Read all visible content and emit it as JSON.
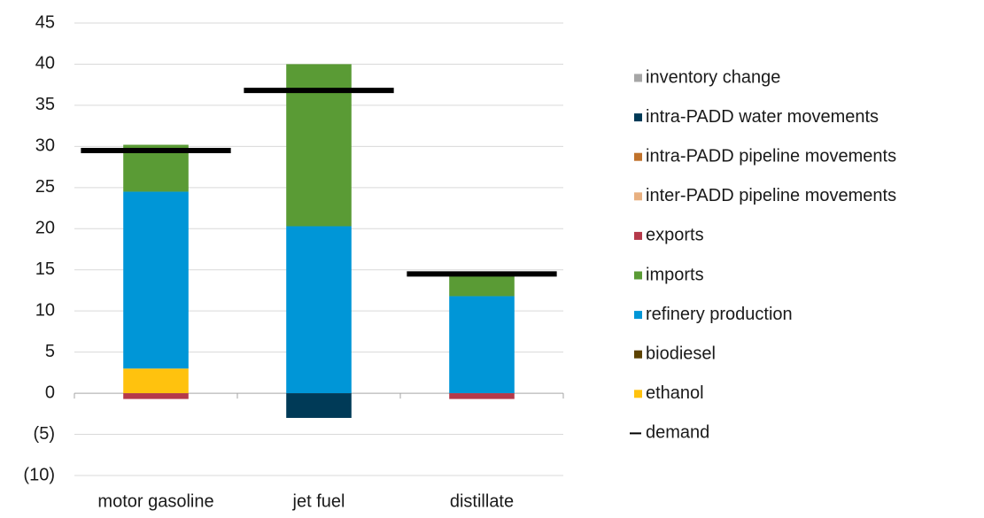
{
  "chart_data": {
    "type": "bar",
    "stacked": true,
    "categories": [
      "motor gasoline",
      "jet fuel",
      "distillate"
    ],
    "series": [
      {
        "name": "inventory change",
        "color": "#a6a6a6",
        "values": [
          0,
          0,
          0
        ]
      },
      {
        "name": "intra-PADD water movements",
        "color": "#003a57",
        "values": [
          0,
          -3,
          0
        ]
      },
      {
        "name": "intra-PADD pipeline movements",
        "color": "#c0722b",
        "values": [
          0,
          0,
          0
        ]
      },
      {
        "name": "inter-PADD pipeline movements",
        "color": "#e8b080",
        "values": [
          0,
          0,
          0
        ]
      },
      {
        "name": "exports",
        "color": "#b5394a",
        "values": [
          -0.7,
          0,
          -0.7
        ]
      },
      {
        "name": "imports",
        "color": "#5a9b35",
        "values": [
          5.7,
          19.7,
          2.8
        ]
      },
      {
        "name": "refinery production",
        "color": "#0096d7",
        "values": [
          21.5,
          20.3,
          11.8
        ]
      },
      {
        "name": "biodiesel",
        "color": "#5c4200",
        "values": [
          0,
          0,
          0
        ]
      },
      {
        "name": "ethanol",
        "color": "#ffc20e",
        "values": [
          3,
          0,
          0
        ]
      },
      {
        "name": "demand",
        "color": "#000000",
        "type": "line",
        "values": [
          29.5,
          36.8,
          14.5
        ]
      }
    ],
    "ylim": [
      -10,
      45
    ],
    "yticks": [
      {
        "value": -10,
        "label": "(10)"
      },
      {
        "value": -5,
        "label": "(5)"
      },
      0,
      5,
      10,
      15,
      20,
      25,
      30,
      35,
      40,
      45
    ],
    "grid": true,
    "legend": "right"
  }
}
